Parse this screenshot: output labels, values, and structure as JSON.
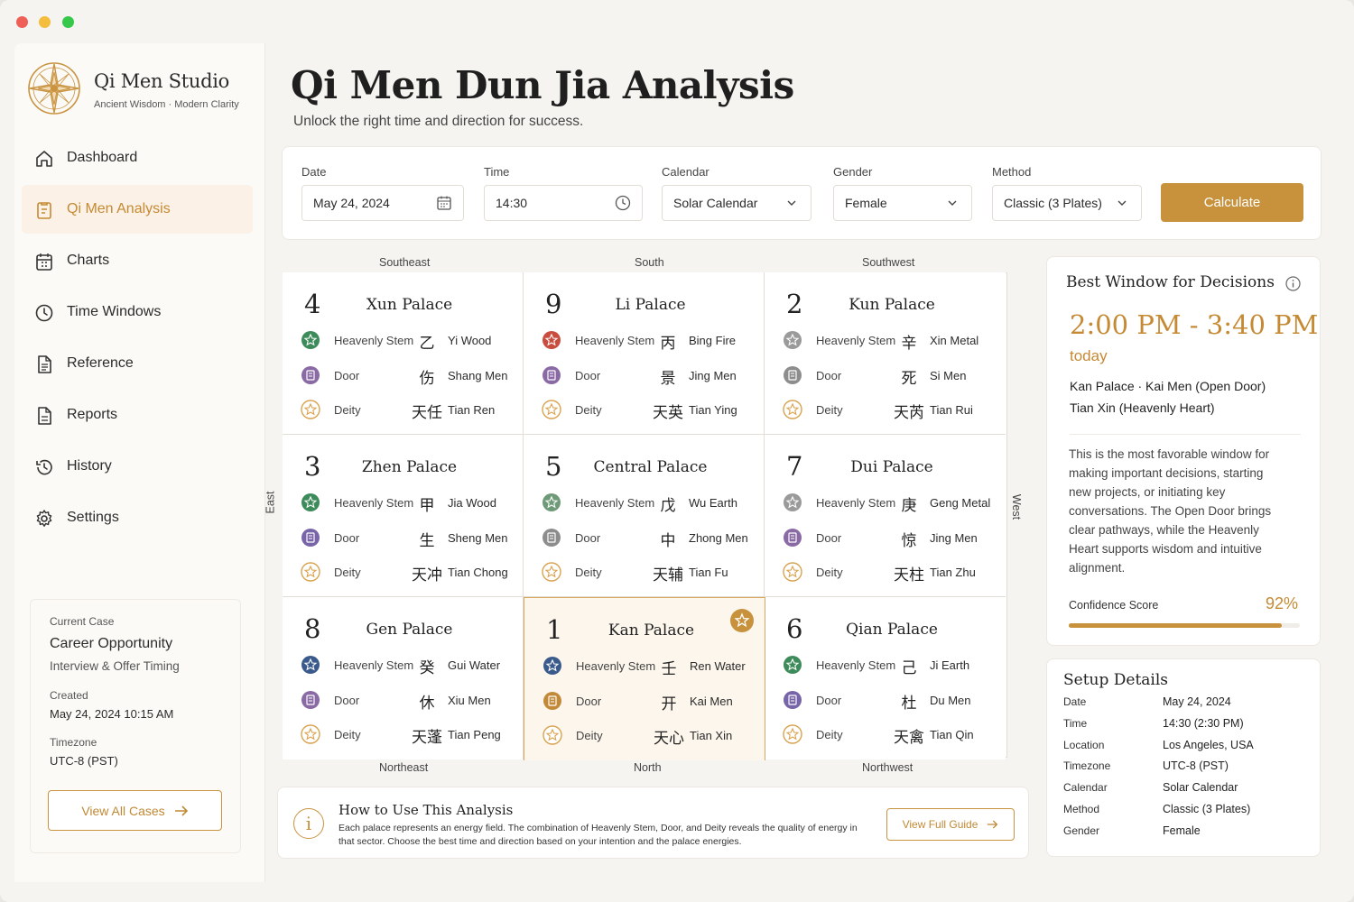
{
  "brand": {
    "name": "Qi Men Studio",
    "tagline": "Ancient Wisdom · Modern Clarity"
  },
  "nav": [
    {
      "label": "Dashboard",
      "icon": "home-icon",
      "active": false
    },
    {
      "label": "Qi Men Analysis",
      "icon": "clipboard-icon",
      "active": true
    },
    {
      "label": "Charts",
      "icon": "chart-grid-icon",
      "active": false
    },
    {
      "label": "Time Windows",
      "icon": "clock-icon",
      "active": false
    },
    {
      "label": "Reference",
      "icon": "document-icon",
      "active": false
    },
    {
      "label": "Reports",
      "icon": "report-icon",
      "active": false
    },
    {
      "label": "History",
      "icon": "history-icon",
      "active": false
    },
    {
      "label": "Settings",
      "icon": "gear-icon",
      "active": false
    }
  ],
  "current_case": {
    "label": "Current Case",
    "title": "Career Opportunity",
    "subtitle": "Interview & Offer Timing",
    "created_label": "Created",
    "created": "May 24, 2024  10:15 AM",
    "timezone_label": "Timezone",
    "timezone": "UTC-8 (PST)",
    "button": "View All Cases"
  },
  "header": {
    "title": "Qi Men Dun Jia Analysis",
    "subtitle": "Unlock the right time and direction for success."
  },
  "form": {
    "date": {
      "label": "Date",
      "value": "May 24, 2024"
    },
    "time": {
      "label": "Time",
      "value": "14:30"
    },
    "calendar": {
      "label": "Calendar",
      "value": "Solar Calendar"
    },
    "gender": {
      "label": "Gender",
      "value": "Female"
    },
    "method": {
      "label": "Method",
      "value": "Classic (3 Plates)"
    },
    "submit": "Calculate"
  },
  "directions": {
    "top": [
      "Southeast",
      "South",
      "Southwest"
    ],
    "bottom": [
      "Northeast",
      "North",
      "Northwest"
    ],
    "left": "East",
    "right": "West"
  },
  "row_labels": {
    "stem": "Heavenly Stem",
    "door": "Door",
    "deity": "Deity"
  },
  "palaces": [
    {
      "number": "4",
      "name": "Xun Palace",
      "stem_char": "乙",
      "stem": "Yi Wood",
      "door_char": "伤",
      "door": "Shang Men",
      "deity_char": "天任",
      "deity": "Tian Ren",
      "highlight": false
    },
    {
      "number": "9",
      "name": "Li Palace",
      "stem_char": "丙",
      "stem": "Bing Fire",
      "door_char": "景",
      "door": "Jing Men",
      "deity_char": "天英",
      "deity": "Tian Ying",
      "highlight": false
    },
    {
      "number": "2",
      "name": "Kun Palace",
      "stem_char": "辛",
      "stem": "Xin Metal",
      "door_char": "死",
      "door": "Si Men",
      "deity_char": "天芮",
      "deity": "Tian Rui",
      "highlight": false
    },
    {
      "number": "3",
      "name": "Zhen Palace",
      "stem_char": "甲",
      "stem": "Jia Wood",
      "door_char": "生",
      "door": "Sheng Men",
      "deity_char": "天冲",
      "deity": "Tian Chong",
      "highlight": false
    },
    {
      "number": "5",
      "name": "Central Palace",
      "stem_char": "戊",
      "stem": "Wu Earth",
      "door_char": "中",
      "door": "Zhong Men",
      "deity_char": "天辅",
      "deity": "Tian Fu",
      "highlight": false
    },
    {
      "number": "7",
      "name": "Dui Palace",
      "stem_char": "庚",
      "stem": "Geng Metal",
      "door_char": "惊",
      "door": "Jing Men",
      "deity_char": "天柱",
      "deity": "Tian Zhu",
      "highlight": false
    },
    {
      "number": "8",
      "name": "Gen Palace",
      "stem_char": "癸",
      "stem": "Gui Water",
      "door_char": "休",
      "door": "Xiu Men",
      "deity_char": "天蓬",
      "deity": "Tian Peng",
      "highlight": false
    },
    {
      "number": "1",
      "name": "Kan Palace",
      "stem_char": "壬",
      "stem": "Ren Water",
      "door_char": "开",
      "door": "Kai Men",
      "deity_char": "天心",
      "deity": "Tian Xin",
      "highlight": true
    },
    {
      "number": "6",
      "name": "Qian Palace",
      "stem_char": "己",
      "stem": "Ji Earth",
      "door_char": "杜",
      "door": "Du Men",
      "deity_char": "天禽",
      "deity": "Tian Qin",
      "highlight": false
    }
  ],
  "how_to": {
    "title": "How to Use This Analysis",
    "body": "Each palace represents an energy field. The combination of Heavenly Stem, Door, and Deity reveals the quality of energy in that sector. Choose the best time and direction based on your intention and the palace energies.",
    "button": "View Full Guide"
  },
  "best_window": {
    "title": "Best Window for Decisions",
    "time": "2:00 PM - 3:40 PM",
    "when": "today",
    "line1": "Kan Palace  ·  Kai Men (Open Door)",
    "line2": "Tian Xin (Heavenly Heart)",
    "description": "This is the most favorable window for making important decisions, starting new projects, or initiating key conversations. The Open Door brings clear pathways, while the Heavenly Heart supports wisdom and intuitive alignment.",
    "confidence_label": "Confidence Score",
    "confidence": "92%",
    "confidence_value": 0.92
  },
  "setup": {
    "title": "Setup Details",
    "rows": [
      {
        "key": "Date",
        "value": "May 24, 2024"
      },
      {
        "key": "Time",
        "value": "14:30 (2:30 PM)"
      },
      {
        "key": "Location",
        "value": "Los Angeles, USA"
      },
      {
        "key": "Timezone",
        "value": "UTC-8 (PST)"
      },
      {
        "key": "Calendar",
        "value": "Solar Calendar"
      },
      {
        "key": "Method",
        "value": "Classic (3 Plates)"
      },
      {
        "key": "Gender",
        "value": "Female"
      }
    ]
  },
  "colors": {
    "accent": "#c8923d",
    "accent_text": "#c58a33",
    "background": "#f6f4f0",
    "card": "#ffffff"
  }
}
